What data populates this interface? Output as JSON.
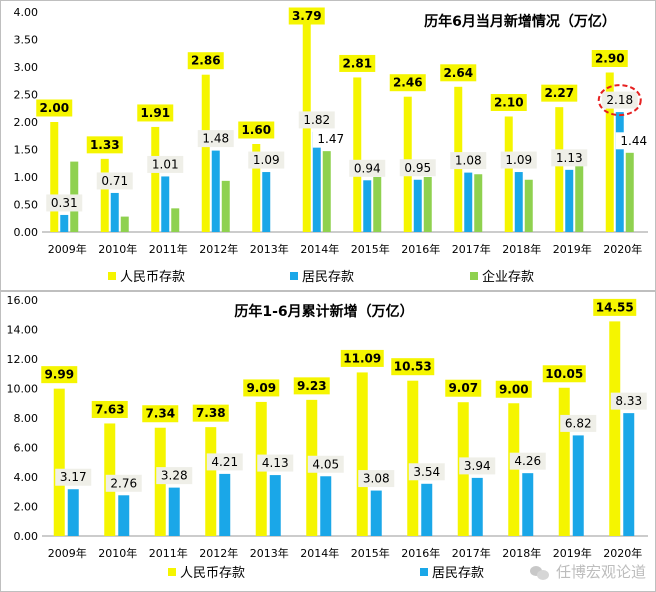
{
  "colors": {
    "rmb": "#F5F500",
    "resident": "#1AA7E8",
    "enterprise": "#8FD14F",
    "label_box": "#EFEFE8",
    "highlight": "#E62020",
    "axis": "#999999",
    "text": "#000000"
  },
  "watermark": {
    "text": "任博宏观论道",
    "icon": "wechat-icon"
  },
  "chart_data": [
    {
      "type": "bar",
      "title": "历年6月当月新增情况（万亿）",
      "categories": [
        "2009年",
        "2010年",
        "2011年",
        "2012年",
        "2013年",
        "2014年",
        "2015年",
        "2016年",
        "2017年",
        "2018年",
        "2019年",
        "2020年"
      ],
      "ylim": [
        0,
        4
      ],
      "yticks": [
        "0.00",
        "0.50",
        "1.00",
        "1.50",
        "2.00",
        "2.50",
        "3.00",
        "3.50",
        "4.00"
      ],
      "ytick_values": [
        0,
        0.5,
        1,
        1.5,
        2,
        2.5,
        3,
        3.5,
        4
      ],
      "legend_position": "bottom",
      "series": [
        {
          "name": "人民币存款",
          "color_key": "rmb",
          "values": [
            2.0,
            1.33,
            1.91,
            2.86,
            1.6,
            3.79,
            2.81,
            2.46,
            2.64,
            2.1,
            2.27,
            2.9
          ],
          "labels": [
            "2.00",
            "1.33",
            "1.91",
            "2.86",
            "1.60",
            "3.79",
            "2.81",
            "2.46",
            "2.64",
            "2.10",
            "2.27",
            "2.90"
          ]
        },
        {
          "name": "居民存款",
          "color_key": "resident",
          "values": [
            0.31,
            0.71,
            1.01,
            1.48,
            1.09,
            1.82,
            0.94,
            0.95,
            1.08,
            1.09,
            1.13,
            2.18
          ],
          "labels": [
            "0.31",
            "0.71",
            "1.01",
            "1.48",
            "1.09",
            "1.82",
            "0.94",
            "0.95",
            "1.08",
            "1.09",
            "1.13",
            "2.18"
          ]
        },
        {
          "name": "企业存款",
          "color_key": "enterprise",
          "values": [
            1.28,
            0.28,
            0.43,
            0.93,
            null,
            1.47,
            1.0,
            1.0,
            1.05,
            0.95,
            1.2,
            1.44
          ],
          "labels": [
            "",
            "",
            "",
            "",
            "",
            "1.47",
            "",
            "",
            "",
            "",
            "",
            "1.44"
          ]
        }
      ],
      "highlight": {
        "series": 1,
        "category": 11
      }
    },
    {
      "type": "bar",
      "title": "历年1-6月累计新增（万亿）",
      "categories": [
        "2009年",
        "2010年",
        "2011年",
        "2012年",
        "2013年",
        "2014年",
        "2015年",
        "2016年",
        "2017年",
        "2018年",
        "2019年",
        "2020年"
      ],
      "ylim": [
        0,
        16
      ],
      "yticks": [
        "0.00",
        "2.00",
        "4.00",
        "6.00",
        "8.00",
        "10.00",
        "12.00",
        "14.00",
        "16.00"
      ],
      "ytick_values": [
        0,
        2,
        4,
        6,
        8,
        10,
        12,
        14,
        16
      ],
      "legend_position": "bottom",
      "series": [
        {
          "name": "人民币存款",
          "color_key": "rmb",
          "values": [
            9.99,
            7.63,
            7.34,
            7.38,
            9.09,
            9.23,
            11.09,
            10.53,
            9.07,
            9.0,
            10.05,
            14.55
          ],
          "labels": [
            "9.99",
            "7.63",
            "7.34",
            "7.38",
            "9.09",
            "9.23",
            "11.09",
            "10.53",
            "9.07",
            "9.00",
            "10.05",
            "14.55"
          ]
        },
        {
          "name": "居民存款",
          "color_key": "resident",
          "values": [
            3.17,
            2.76,
            3.28,
            4.21,
            4.13,
            4.05,
            3.08,
            3.54,
            3.94,
            4.26,
            6.82,
            8.33
          ],
          "labels": [
            "3.17",
            "2.76",
            "3.28",
            "4.21",
            "4.13",
            "4.05",
            "3.08",
            "3.54",
            "3.94",
            "4.26",
            "6.82",
            "8.33"
          ]
        }
      ]
    }
  ]
}
